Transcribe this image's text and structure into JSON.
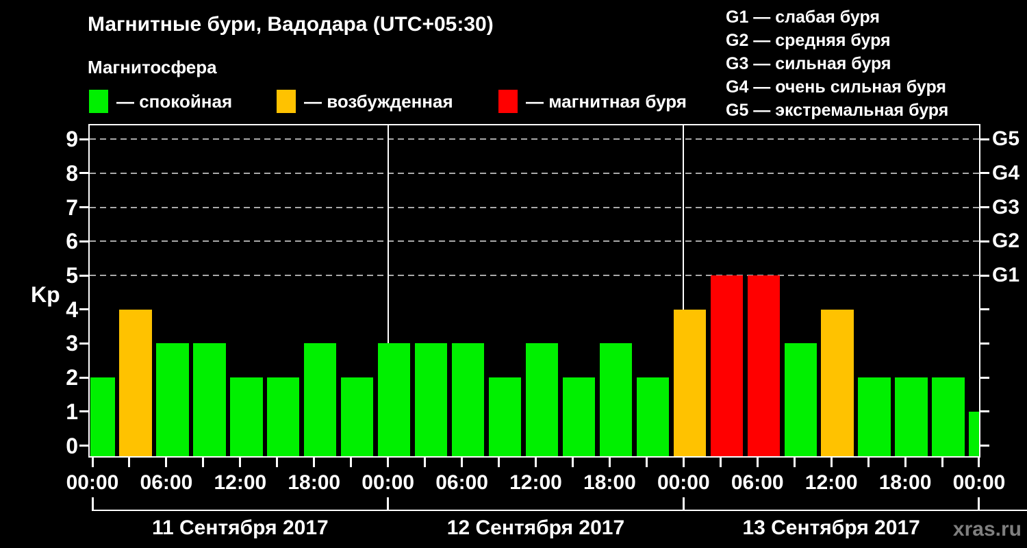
{
  "title": "Магнитные бури, Вадодара (UTC+05:30)",
  "watermark": "xras.ru",
  "magnetosphere_legend": {
    "title": "Магнитосфера",
    "items": [
      {
        "label": "— спокойная",
        "state": "quiet"
      },
      {
        "label": "— возбужденная",
        "state": "excited"
      },
      {
        "label": "— магнитная буря",
        "state": "storm"
      }
    ]
  },
  "storm_scale_legend": [
    "G1 — слабая буря",
    "G2 — средняя буря",
    "G3 — сильная буря",
    "G4 — очень сильная буря",
    "G5 — экстремальная буря"
  ],
  "chart_data": {
    "type": "bar",
    "ylabel": "Kp",
    "y_ticks": [
      0,
      1,
      2,
      3,
      4,
      5,
      6,
      7,
      8,
      9
    ],
    "ylim": [
      0,
      9.5
    ],
    "grid_dashed_at_kp": [
      5,
      6,
      7,
      8,
      9
    ],
    "right_axis_labels": [
      {
        "label": "G1",
        "kp": 5
      },
      {
        "label": "G2",
        "kp": 6
      },
      {
        "label": "G3",
        "kp": 7
      },
      {
        "label": "G4",
        "kp": 8
      },
      {
        "label": "G5",
        "kp": 9
      }
    ],
    "x_tick_labels_6h": [
      "00:00",
      "06:00",
      "12:00",
      "18:00",
      "00:00",
      "06:00",
      "12:00",
      "18:00",
      "00:00",
      "06:00",
      "12:00",
      "18:00",
      "00:00"
    ],
    "interval_hours": 3,
    "days": [
      {
        "date": "11 Сентября 2017",
        "kp": [
          2,
          4,
          3,
          3,
          2,
          2,
          3,
          2
        ],
        "states": [
          "quiet",
          "excited",
          "quiet",
          "quiet",
          "quiet",
          "quiet",
          "quiet",
          "quiet"
        ]
      },
      {
        "date": "12 Сентября 2017",
        "kp": [
          3,
          3,
          3,
          2,
          3,
          2,
          3,
          2
        ],
        "states": [
          "quiet",
          "quiet",
          "quiet",
          "quiet",
          "quiet",
          "quiet",
          "quiet",
          "quiet"
        ]
      },
      {
        "date": "13 Сентября 2017",
        "kp": [
          4,
          5,
          5,
          3,
          4,
          2,
          2,
          2
        ],
        "states": [
          "excited",
          "storm",
          "storm",
          "quiet",
          "excited",
          "quiet",
          "quiet",
          "quiet"
        ]
      }
    ],
    "partial_next_interval": {
      "kp": 1,
      "state": "quiet"
    },
    "colors": {
      "quiet": "#00F000",
      "excited": "#FFC200",
      "storm": "#FF0000"
    },
    "grid_color": "#aaaaaa",
    "legend_position": "top",
    "grid": "dashed horizontal at Kp 5-9 only"
  }
}
